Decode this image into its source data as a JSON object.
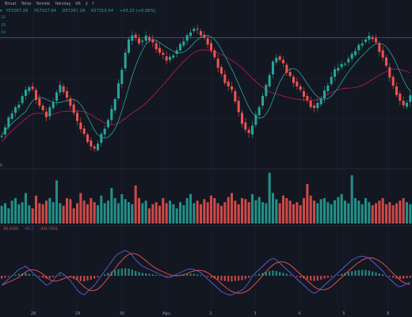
{
  "toolbar": {
    "items": [
      "Birsat",
      "Tahip",
      "Yeniele",
      "Yakınlaş",
      "Wt",
      "‡",
      "f"
    ],
    "first_icon": "menu-icon"
  },
  "ohlc_line": {
    "first_glyph": "▾",
    "open": "57267.29",
    "high": "57327.94",
    "low": "57267.29",
    "close": "57310.54",
    "change": "+43.25 (+0.08%)"
  },
  "ma_side_labels": [
    ".32",
    ".35",
    ".54"
  ],
  "volume_label": "9",
  "macd_legend": [
    {
      "text": "-95.6356",
      "color": "#ef5350"
    },
    {
      "text": "-66.2",
      "color": "#5b5fd6"
    },
    {
      "text": "-341.7201",
      "color": "#ef5350"
    }
  ],
  "x_axis_labels": [
    "28",
    "29",
    "30",
    "Ağu",
    "2",
    "3",
    "4",
    "5",
    "6"
  ],
  "colors": {
    "background": "#131722",
    "up": "#26a69a",
    "down": "#ef5350",
    "grid": "#1e2433",
    "ma_fast": "#26a69a",
    "ma_slow": "#c2185b",
    "macd_line": "#5b5fd6",
    "signal_line": "#ef5350",
    "hline": "#26a69a"
  },
  "chart_data": {
    "type": "candlestick",
    "series_count": 120,
    "price_path": [
      57200,
      57260,
      57330,
      57380,
      57420,
      57460,
      57520,
      57560,
      57600,
      57570,
      57500,
      57440,
      57390,
      57350,
      57420,
      57480,
      57550,
      57600,
      57560,
      57500,
      57450,
      57380,
      57300,
      57250,
      57200,
      57150,
      57100,
      57070,
      57130,
      57200,
      57260,
      57320,
      57400,
      57500,
      57620,
      57750,
      57880,
      57980,
      58030,
      58000,
      57970,
      57980,
      58010,
      57990,
      57960,
      57920,
      57880,
      57850,
      57820,
      57840,
      57870,
      57900,
      57940,
      57980,
      58020,
      58060,
      58080,
      58060,
      58030,
      58000,
      57960,
      57900,
      57830,
      57760,
      57700,
      57640,
      57600,
      57560,
      57480,
      57380,
      57300,
      57240,
      57200,
      57280,
      57360,
      57440,
      57520,
      57600,
      57700,
      57800,
      57850,
      57820,
      57780,
      57720,
      57680,
      57640,
      57600,
      57560,
      57520,
      57480,
      57440,
      57420,
      57450,
      57500,
      57560,
      57620,
      57680,
      57730,
      57760,
      57780,
      57800,
      57830,
      57860,
      57900,
      57940,
      57970,
      57990,
      58010,
      58000,
      57960,
      57900,
      57840,
      57760,
      57680,
      57600,
      57540,
      57480,
      57430,
      57470,
      57520
    ],
    "ma_fast": {
      "name": "",
      "color": "#26a69a"
    },
    "ma_slow": {
      "name": "",
      "color": "#c2185b"
    },
    "horizontal_line_price": 58005,
    "volume_profile": [
      0.35,
      0.4,
      0.3,
      0.45,
      0.5,
      0.38,
      0.42,
      0.6,
      0.36,
      0.3,
      0.55,
      0.4,
      0.38,
      0.45,
      0.5,
      0.42,
      0.85,
      0.4,
      0.35,
      0.5,
      0.48,
      0.3,
      0.4,
      0.6,
      0.45,
      0.38,
      0.5,
      0.42,
      0.36,
      0.55,
      0.4,
      0.45,
      0.7,
      0.5,
      0.4,
      0.58,
      0.48,
      0.42,
      0.38,
      0.75,
      0.5,
      0.4,
      0.45,
      0.3,
      0.38,
      0.42,
      0.35,
      0.5,
      0.4,
      0.45,
      0.38,
      0.3,
      0.42,
      0.36,
      0.5,
      0.58,
      0.4,
      0.45,
      0.38,
      0.48,
      0.42,
      0.55,
      0.5,
      0.4,
      0.35,
      0.42,
      0.52,
      0.6,
      0.45,
      0.38,
      0.5,
      0.48,
      0.42,
      0.58,
      0.46,
      0.52,
      0.42,
      0.4,
      1.0,
      0.6,
      0.48,
      0.4,
      0.55,
      0.5,
      0.45,
      0.38,
      0.42,
      0.36,
      0.5,
      0.78,
      0.55,
      0.45,
      0.4,
      0.48,
      0.5,
      0.42,
      0.38,
      0.46,
      0.52,
      0.58,
      0.45,
      0.4,
      0.95,
      0.5,
      0.45,
      0.38,
      0.5,
      0.42,
      0.36,
      0.4,
      0.45,
      0.5,
      0.38,
      0.42,
      0.36,
      0.4,
      0.45,
      0.5,
      0.42,
      0.38
    ],
    "macd_hist_profile": [
      -0.3,
      -0.2,
      -0.1,
      0,
      0.1,
      0.2,
      0.25,
      0.3,
      0.2,
      0.1,
      0,
      -0.1,
      -0.2,
      -0.3,
      -0.25,
      -0.15,
      0.0,
      0.1,
      0.05,
      -0.05,
      -0.15,
      -0.3,
      -0.45,
      -0.55,
      -0.6,
      -0.5,
      -0.4,
      -0.3,
      -0.15,
      0.0,
      0.15,
      0.3,
      0.45,
      0.6,
      0.7,
      0.75,
      0.8,
      0.75,
      0.65,
      0.5,
      0.4,
      0.3,
      0.25,
      0.2,
      0.15,
      0.1,
      0.05,
      0.0,
      -0.05,
      -0.05,
      0.0,
      0.05,
      0.1,
      0.15,
      0.2,
      0.22,
      0.2,
      0.15,
      0.1,
      0.0,
      -0.1,
      -0.2,
      -0.3,
      -0.4,
      -0.5,
      -0.55,
      -0.6,
      -0.6,
      -0.55,
      -0.5,
      -0.45,
      -0.35,
      -0.2,
      0.0,
      0.1,
      0.2,
      0.3,
      0.4,
      0.5,
      0.55,
      0.5,
      0.4,
      0.3,
      0.2,
      0.1,
      0.0,
      -0.1,
      -0.2,
      -0.3,
      -0.4,
      -0.5,
      -0.55,
      -0.5,
      -0.4,
      -0.3,
      -0.2,
      -0.1,
      0.0,
      0.1,
      0.2,
      0.3,
      0.4,
      0.5,
      0.55,
      0.6,
      0.62,
      0.6,
      0.55,
      0.45,
      0.35,
      0.25,
      0.15,
      0.0,
      -0.1,
      -0.2,
      -0.3,
      -0.35,
      -0.3,
      -0.25,
      -0.2
    ]
  }
}
